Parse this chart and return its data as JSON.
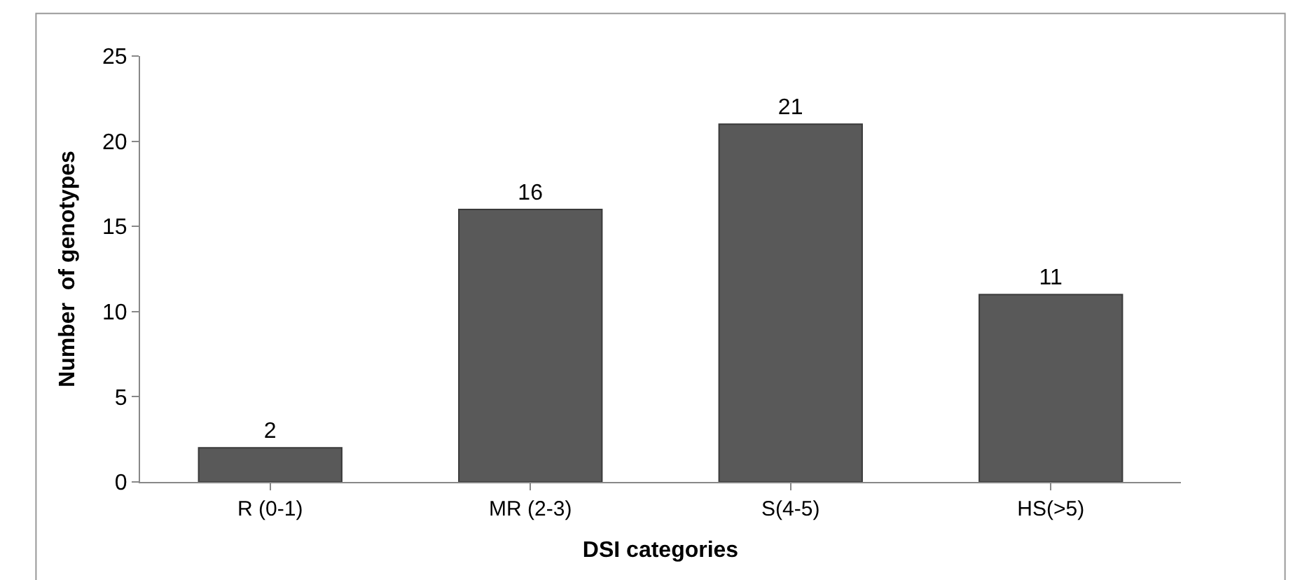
{
  "chart_data": {
    "type": "bar",
    "xlabel": "DSI categories",
    "ylabel": "Number  of genotypes",
    "categories": [
      "R (0-1)",
      "MR (2-3)",
      "S(4-5)",
      "HS(>5)"
    ],
    "values": [
      2,
      16,
      21,
      11
    ],
    "color": "#595959",
    "ylim": [
      0,
      25
    ],
    "yticks": [
      0,
      5,
      10,
      15,
      20,
      25
    ],
    "data_labels": true
  }
}
